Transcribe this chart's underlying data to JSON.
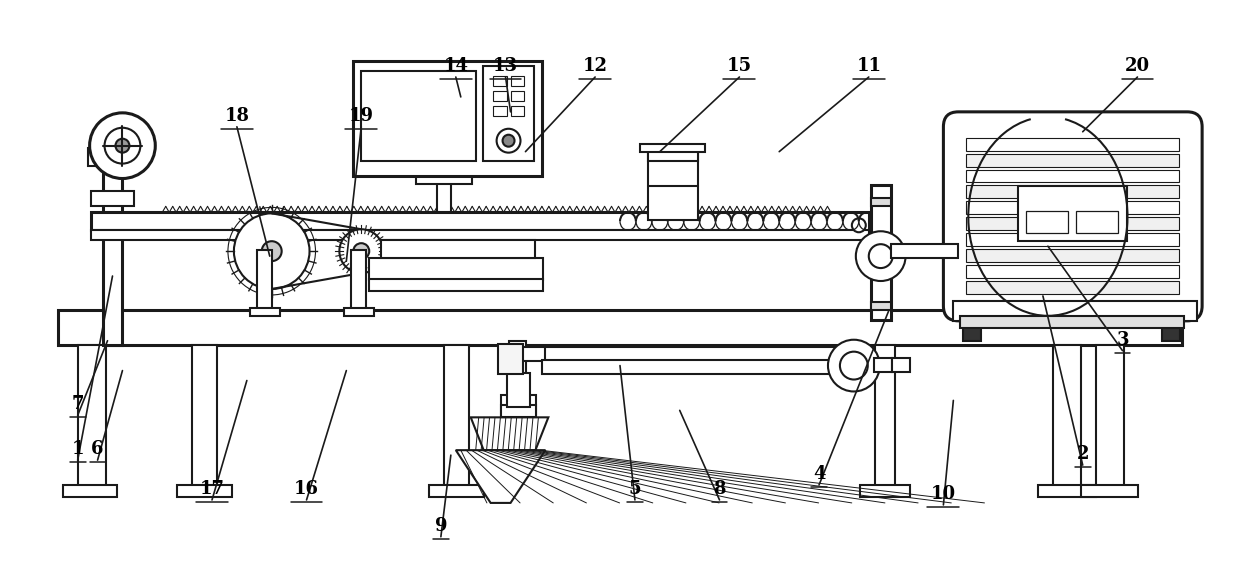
{
  "bg_color": "#ffffff",
  "line_color": "#1a1a1a",
  "lw": 1.5,
  "lw_thick": 2.2,
  "lw_thin": 0.9,
  "labels_data": [
    [
      "1",
      75,
      105,
      110,
      290
    ],
    [
      "2",
      1085,
      100,
      1045,
      270
    ],
    [
      "3",
      1125,
      215,
      1050,
      320
    ],
    [
      "4",
      820,
      80,
      890,
      255
    ],
    [
      "5",
      635,
      65,
      620,
      200
    ],
    [
      "6",
      95,
      105,
      120,
      195
    ],
    [
      "7",
      75,
      150,
      105,
      225
    ],
    [
      "8",
      720,
      65,
      680,
      155
    ],
    [
      "9",
      440,
      28,
      450,
      110
    ],
    [
      "10",
      945,
      60,
      955,
      165
    ],
    [
      "11",
      870,
      490,
      780,
      415
    ],
    [
      "12",
      595,
      490,
      525,
      415
    ],
    [
      "13",
      505,
      490,
      510,
      455
    ],
    [
      "14",
      455,
      490,
      460,
      470
    ],
    [
      "15",
      740,
      490,
      660,
      415
    ],
    [
      "16",
      305,
      65,
      345,
      195
    ],
    [
      "17",
      210,
      65,
      245,
      185
    ],
    [
      "18",
      235,
      440,
      268,
      310
    ],
    [
      "19",
      360,
      440,
      345,
      305
    ],
    [
      "20",
      1140,
      490,
      1085,
      435
    ]
  ]
}
